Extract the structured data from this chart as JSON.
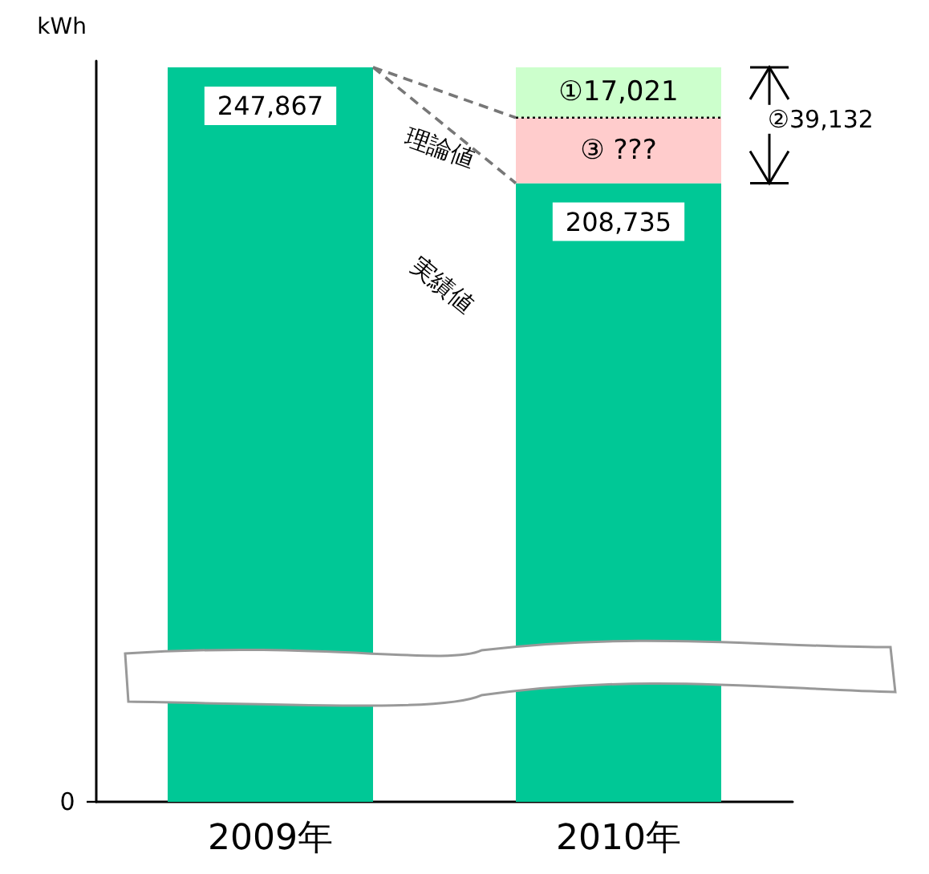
{
  "chart_data": {
    "type": "bar",
    "stacked": true,
    "ylabel": "kWh",
    "categories": [
      "2009年",
      "2010年"
    ],
    "series": [
      {
        "color": "#00c896",
        "values": [
          247867,
          208735
        ],
        "value_labels": [
          "247,867",
          "208,735"
        ]
      },
      {
        "color": "#ffcccc",
        "values": [
          null,
          22111
        ],
        "value_labels": [
          null,
          "③ ???"
        ]
      },
      {
        "color": "#ccffcc",
        "values": [
          null,
          17021
        ],
        "value_labels": [
          null,
          "①17,021"
        ]
      }
    ],
    "grid": false,
    "annotations": [
      "理論値",
      "実績値",
      "②39,132",
      "0"
    ]
  }
}
